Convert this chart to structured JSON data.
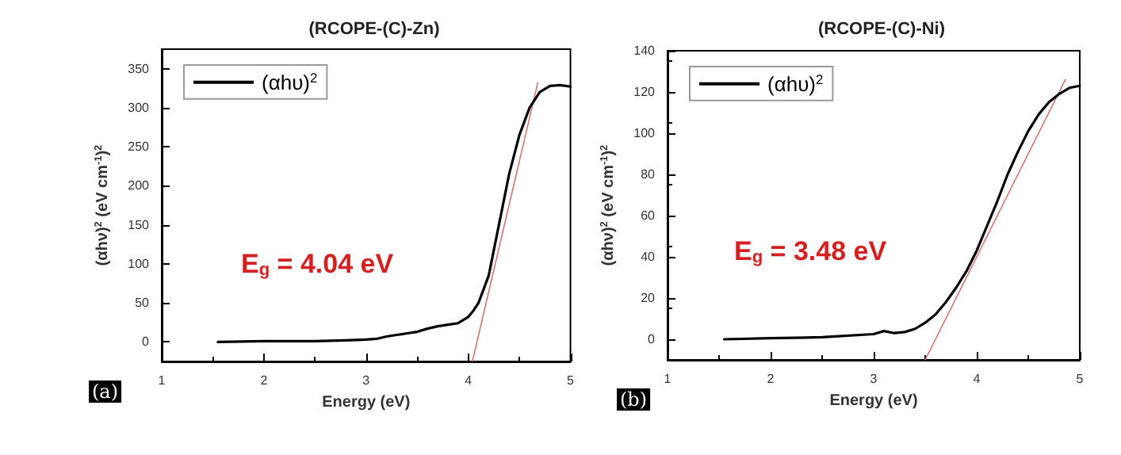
{
  "chart_data": [
    {
      "type": "line",
      "title": "(RCOPE-(C)-Zn)",
      "xlabel": "Energy (eV)",
      "ylabel": "(αhν)$^{2}$ (eV cm$^{-1}$)$^{2}$",
      "annotations": [
        "E$_{g}$ = 4.04 eV",
        "(a)"
      ],
      "xlim": [
        1,
        5
      ],
      "xticks": [
        1,
        2,
        3,
        4,
        5
      ],
      "ylim": [
        -25,
        375
      ],
      "yticks": [
        0,
        50,
        100,
        150,
        200,
        250,
        300,
        350
      ],
      "grid": false,
      "legend": "top left",
      "marker": "none",
      "line_style": "solid",
      "series": [
        {
          "name": "(αhυ)$^{2}$",
          "color": "#000000",
          "x": [
            1.55,
            2.0,
            2.5,
            2.8,
            3.0,
            3.1,
            3.2,
            3.3,
            3.4,
            3.5,
            3.6,
            3.7,
            3.8,
            3.9,
            4.0,
            4.05,
            4.1,
            4.2,
            4.3,
            4.4,
            4.5,
            4.6,
            4.7,
            4.8,
            4.9,
            5.0
          ],
          "values": [
            0,
            1,
            1,
            2,
            3,
            4,
            7,
            9,
            11,
            13,
            17,
            20,
            22,
            24,
            32,
            40,
            50,
            85,
            150,
            215,
            265,
            300,
            320,
            328,
            329,
            327
          ]
        },
        {
          "type": "line",
          "color": "#e07070",
          "x": [
            4.04,
            4.68
          ],
          "values": [
            -25,
            332
          ]
        }
      ]
    },
    {
      "type": "line",
      "title": "(RCOPE-(C)-Ni)",
      "xlabel": "Energy (eV)",
      "ylabel": "(αhν)$^{2}$ (eV cm$^{-1}$)$^{2}$",
      "annotations": [
        "E$_{g}$ = 3.48 eV",
        "(b)"
      ],
      "xlim": [
        1,
        5
      ],
      "xticks": [
        1,
        2,
        3,
        4,
        5
      ],
      "ylim": [
        -10,
        140
      ],
      "yticks": [
        0,
        20,
        40,
        60,
        80,
        100,
        120,
        140
      ],
      "grid": false,
      "legend": "top left",
      "marker": "none",
      "line_style": "solid",
      "series": [
        {
          "name": "(αhυ)$^{2}$",
          "color": "#000000",
          "x": [
            1.55,
            2.0,
            2.5,
            3.0,
            3.1,
            3.2,
            3.3,
            3.4,
            3.5,
            3.6,
            3.7,
            3.8,
            3.9,
            4.0,
            4.1,
            4.2,
            4.3,
            4.4,
            4.5,
            4.6,
            4.7,
            4.8,
            4.9,
            5.0
          ],
          "values": [
            0,
            0.5,
            1,
            2.5,
            4,
            3,
            3.5,
            5,
            8,
            12,
            18,
            25,
            33,
            43,
            55,
            67,
            80,
            91,
            101,
            109,
            115,
            119,
            122,
            123
          ]
        },
        {
          "type": "line",
          "color": "#e07070",
          "x": [
            3.5,
            4.86
          ],
          "values": [
            -10,
            126
          ]
        }
      ]
    }
  ]
}
